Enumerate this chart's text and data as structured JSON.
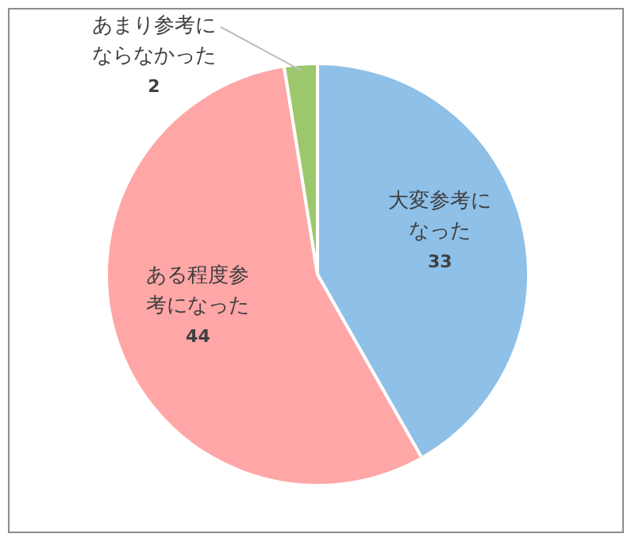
{
  "chart_data": {
    "type": "pie",
    "categories": [
      "大変参考になった",
      "ある程度参考になった",
      "あまり参考にならなかった"
    ],
    "values": [
      33,
      44,
      2
    ],
    "colors": [
      "#8ec0e8",
      "#ffa6a6",
      "#9cc76c"
    ],
    "data_labels": true
  }
}
